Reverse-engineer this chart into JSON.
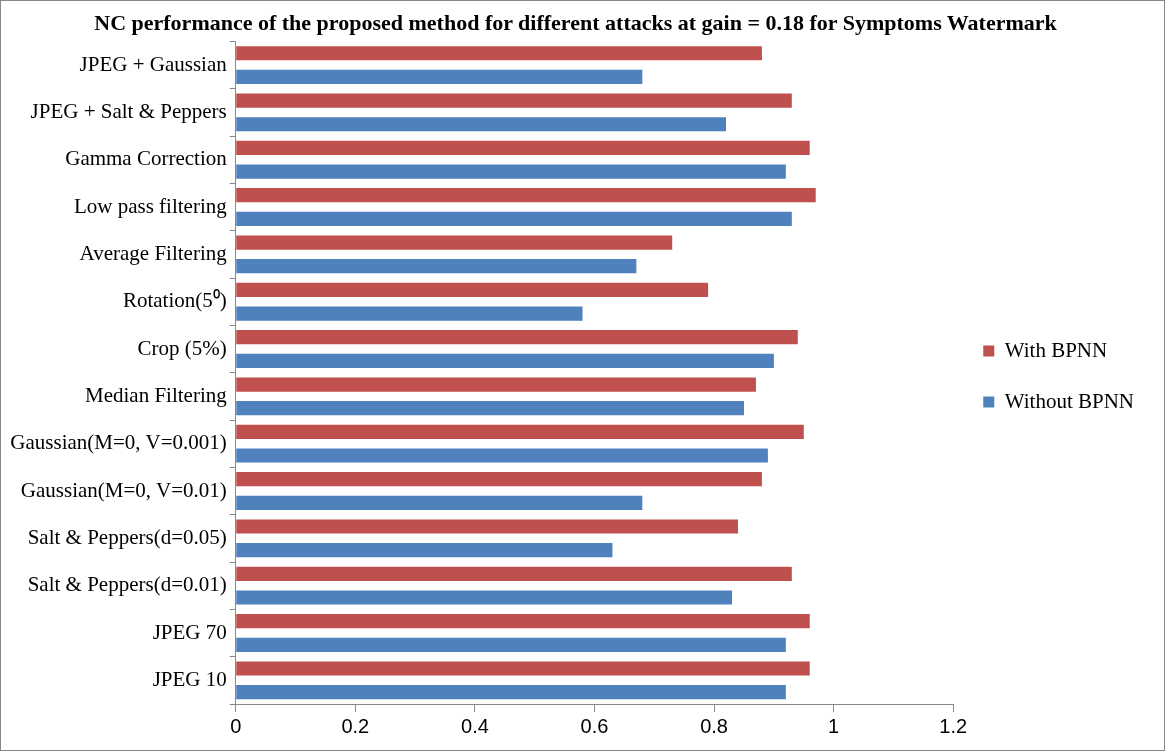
{
  "chart_data": {
    "type": "bar",
    "orientation": "horizontal",
    "title": "NC performance of the proposed method for different attacks at gain = 0.18 for Symptoms Watermark",
    "categories": [
      "JPEG + Gaussian",
      "JPEG + Salt & Peppers",
      "Gamma Correction",
      "Low pass filtering",
      "Average Filtering",
      "Rotation(5⁰)",
      "Crop (5%)",
      "Median Filtering",
      "Gaussian(M=0, V=0.001)",
      "Gaussian(M=0, V=0.01)",
      "Salt & Peppers(d=0.05)",
      "Salt & Peppers(d=0.01)",
      "JPEG 70",
      "JPEG 10"
    ],
    "series": [
      {
        "name": "With BPNN",
        "color": "#c0504d",
        "values": [
          0.88,
          0.93,
          0.96,
          0.97,
          0.73,
          0.79,
          0.94,
          0.87,
          0.95,
          0.88,
          0.84,
          0.93,
          0.96,
          0.96
        ]
      },
      {
        "name": "Without BPNN",
        "color": "#4f81bd",
        "values": [
          0.68,
          0.82,
          0.92,
          0.93,
          0.67,
          0.58,
          0.9,
          0.85,
          0.89,
          0.68,
          0.63,
          0.83,
          0.92,
          0.92
        ]
      }
    ],
    "xlim": [
      0,
      1.2
    ],
    "xticks": [
      0,
      0.2,
      0.4,
      0.6,
      0.8,
      1,
      1.2
    ],
    "grid": false,
    "legend": "right"
  }
}
